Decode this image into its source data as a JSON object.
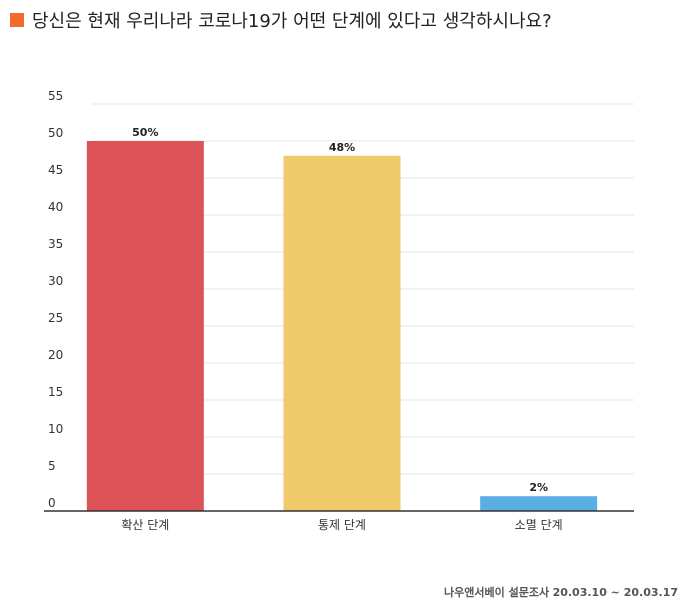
{
  "title": "당신은 현재 우리나라 코로나19가 어떤 단계에 있다고 생각하시나요?",
  "accent_color": "#f26a2e",
  "chart_data": {
    "type": "bar",
    "categories": [
      "확산 단계",
      "통제 단계",
      "소멸 단계"
    ],
    "values": [
      50,
      48,
      2
    ],
    "value_labels": [
      "50%",
      "48%",
      "2%"
    ],
    "colors": [
      "#dc5256",
      "#efc96a",
      "#5aaee4"
    ],
    "ylim": [
      0,
      55
    ],
    "yticks": [
      0,
      5,
      10,
      15,
      20,
      25,
      30,
      35,
      40,
      45,
      50,
      55
    ],
    "grid": true,
    "xlabel": "",
    "ylabel": ""
  },
  "source": {
    "name": "나우앤서베이 설문조사",
    "date": "20.03.10 ~ 20.03.17"
  }
}
